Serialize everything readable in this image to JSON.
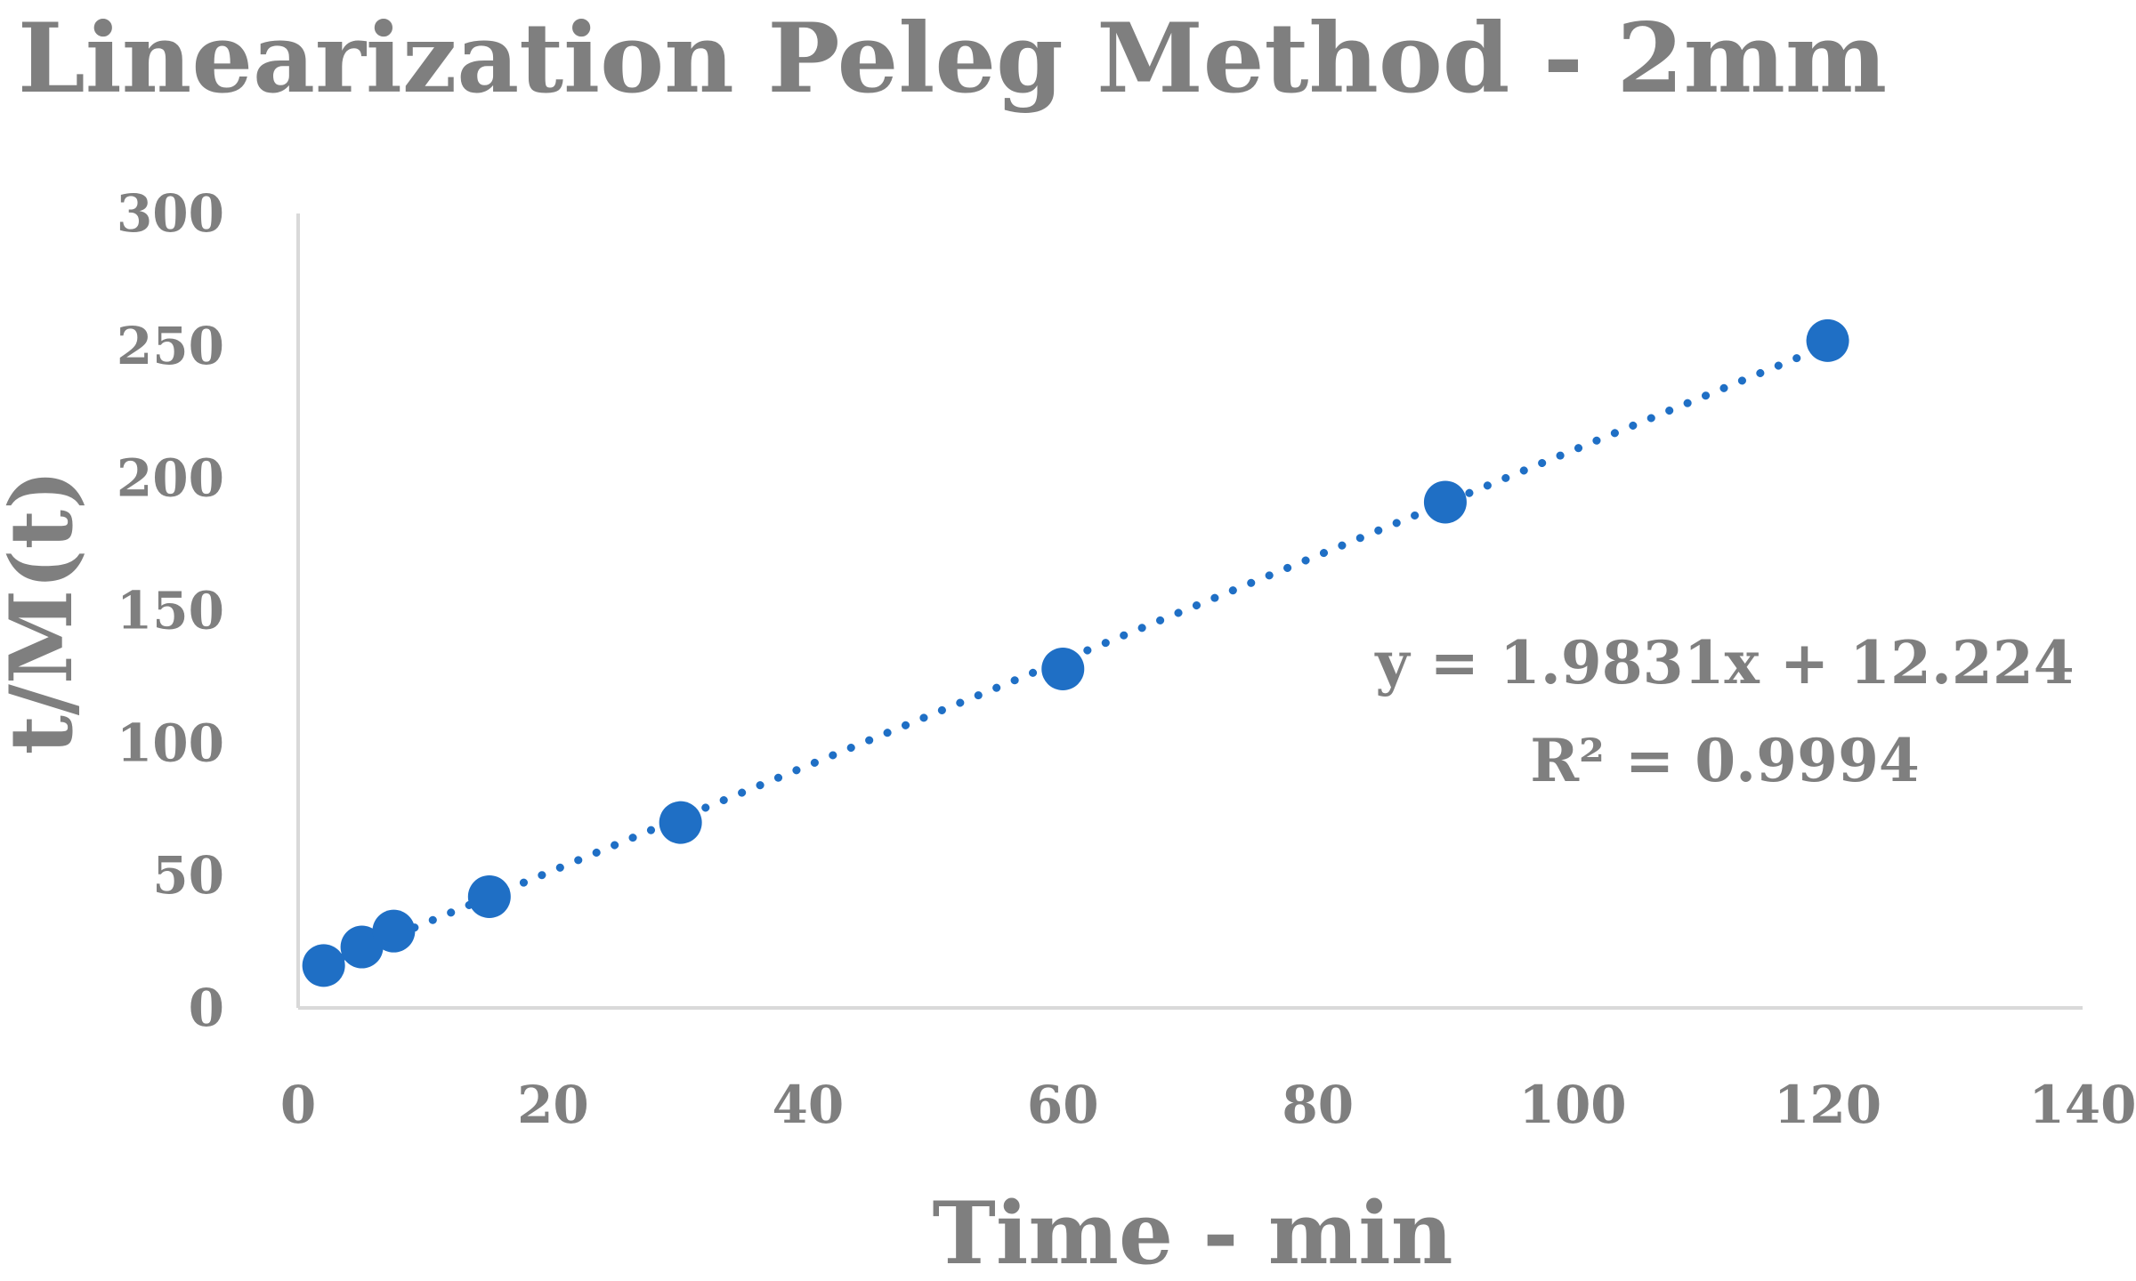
{
  "chart_data": {
    "type": "scatter",
    "title": "Linearization Peleg Method - 2mm",
    "xlabel": "Time - min",
    "ylabel": "t/M(t)",
    "xlim": [
      0,
      140
    ],
    "ylim": [
      0,
      300
    ],
    "xticks": [
      "0",
      "20",
      "40",
      "60",
      "80",
      "100",
      "120",
      "140"
    ],
    "yticks": [
      "0",
      "50",
      "100",
      "150",
      "200",
      "250",
      "300"
    ],
    "grid": false,
    "series": [
      {
        "color": "#1f6fc5",
        "points": [
          {
            "x": 2,
            "y": 16
          },
          {
            "x": 5,
            "y": 23
          },
          {
            "x": 7.5,
            "y": 29
          },
          {
            "x": 15,
            "y": 42
          },
          {
            "x": 30,
            "y": 70
          },
          {
            "x": 60,
            "y": 128
          },
          {
            "x": 90,
            "y": 191
          },
          {
            "x": 120,
            "y": 252
          }
        ],
        "trendline": {
          "type": "linear",
          "style": "dotted",
          "slope": 1.9831,
          "intercept": 12.224,
          "x_range": [
            2,
            120
          ]
        }
      }
    ],
    "annotations": {
      "equation": "y = 1.9831x + 12.224",
      "r_squared": "R² = 0.9994"
    },
    "axis_color": "#d9d9d9"
  }
}
